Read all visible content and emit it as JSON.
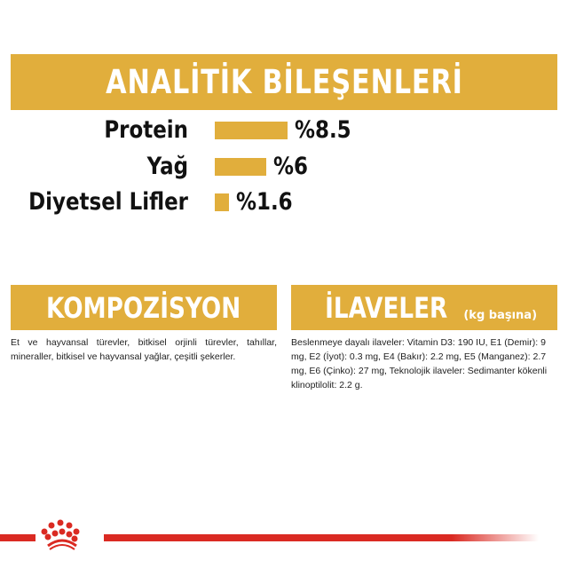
{
  "analytics": {
    "title": "ANALİTİK BİLEŞENLERİ",
    "items": [
      {
        "label": "Protein",
        "value": 8.5,
        "display": "%8.5"
      },
      {
        "label": "Yağ",
        "value": 6,
        "display": "%6"
      },
      {
        "label": "Diyetsel Lifler",
        "value": 1.6,
        "display": "%1.6"
      }
    ]
  },
  "composition": {
    "title": "KOMPOZİSYON",
    "text": "Et ve hayvansal türevler, bitkisel orjinli türevler, tahıllar, mineraller, bitkisel ve hayvansal yağlar, çeşitli şekerler."
  },
  "additives": {
    "title": "İLAVELER",
    "subtitle": "(kg başına)",
    "text": "Beslenmeye dayalı ilaveler: Vitamin D3: 190 IU, E1 (Demir): 9 mg, E2 (İyot): 0.3 mg, E4 (Bakır): 2.2 mg, E5 (Manganez): 2.7 mg, E6 (Çinko): 27 mg, Teknolojik ilaveler: Sedimanter kökenli klinoptilolit: 2.2 g."
  },
  "colors": {
    "accent": "#E1AE3C",
    "brand_red": "#DA2A22"
  },
  "logo": {
    "icon": "royal-canin-crown-icon"
  }
}
